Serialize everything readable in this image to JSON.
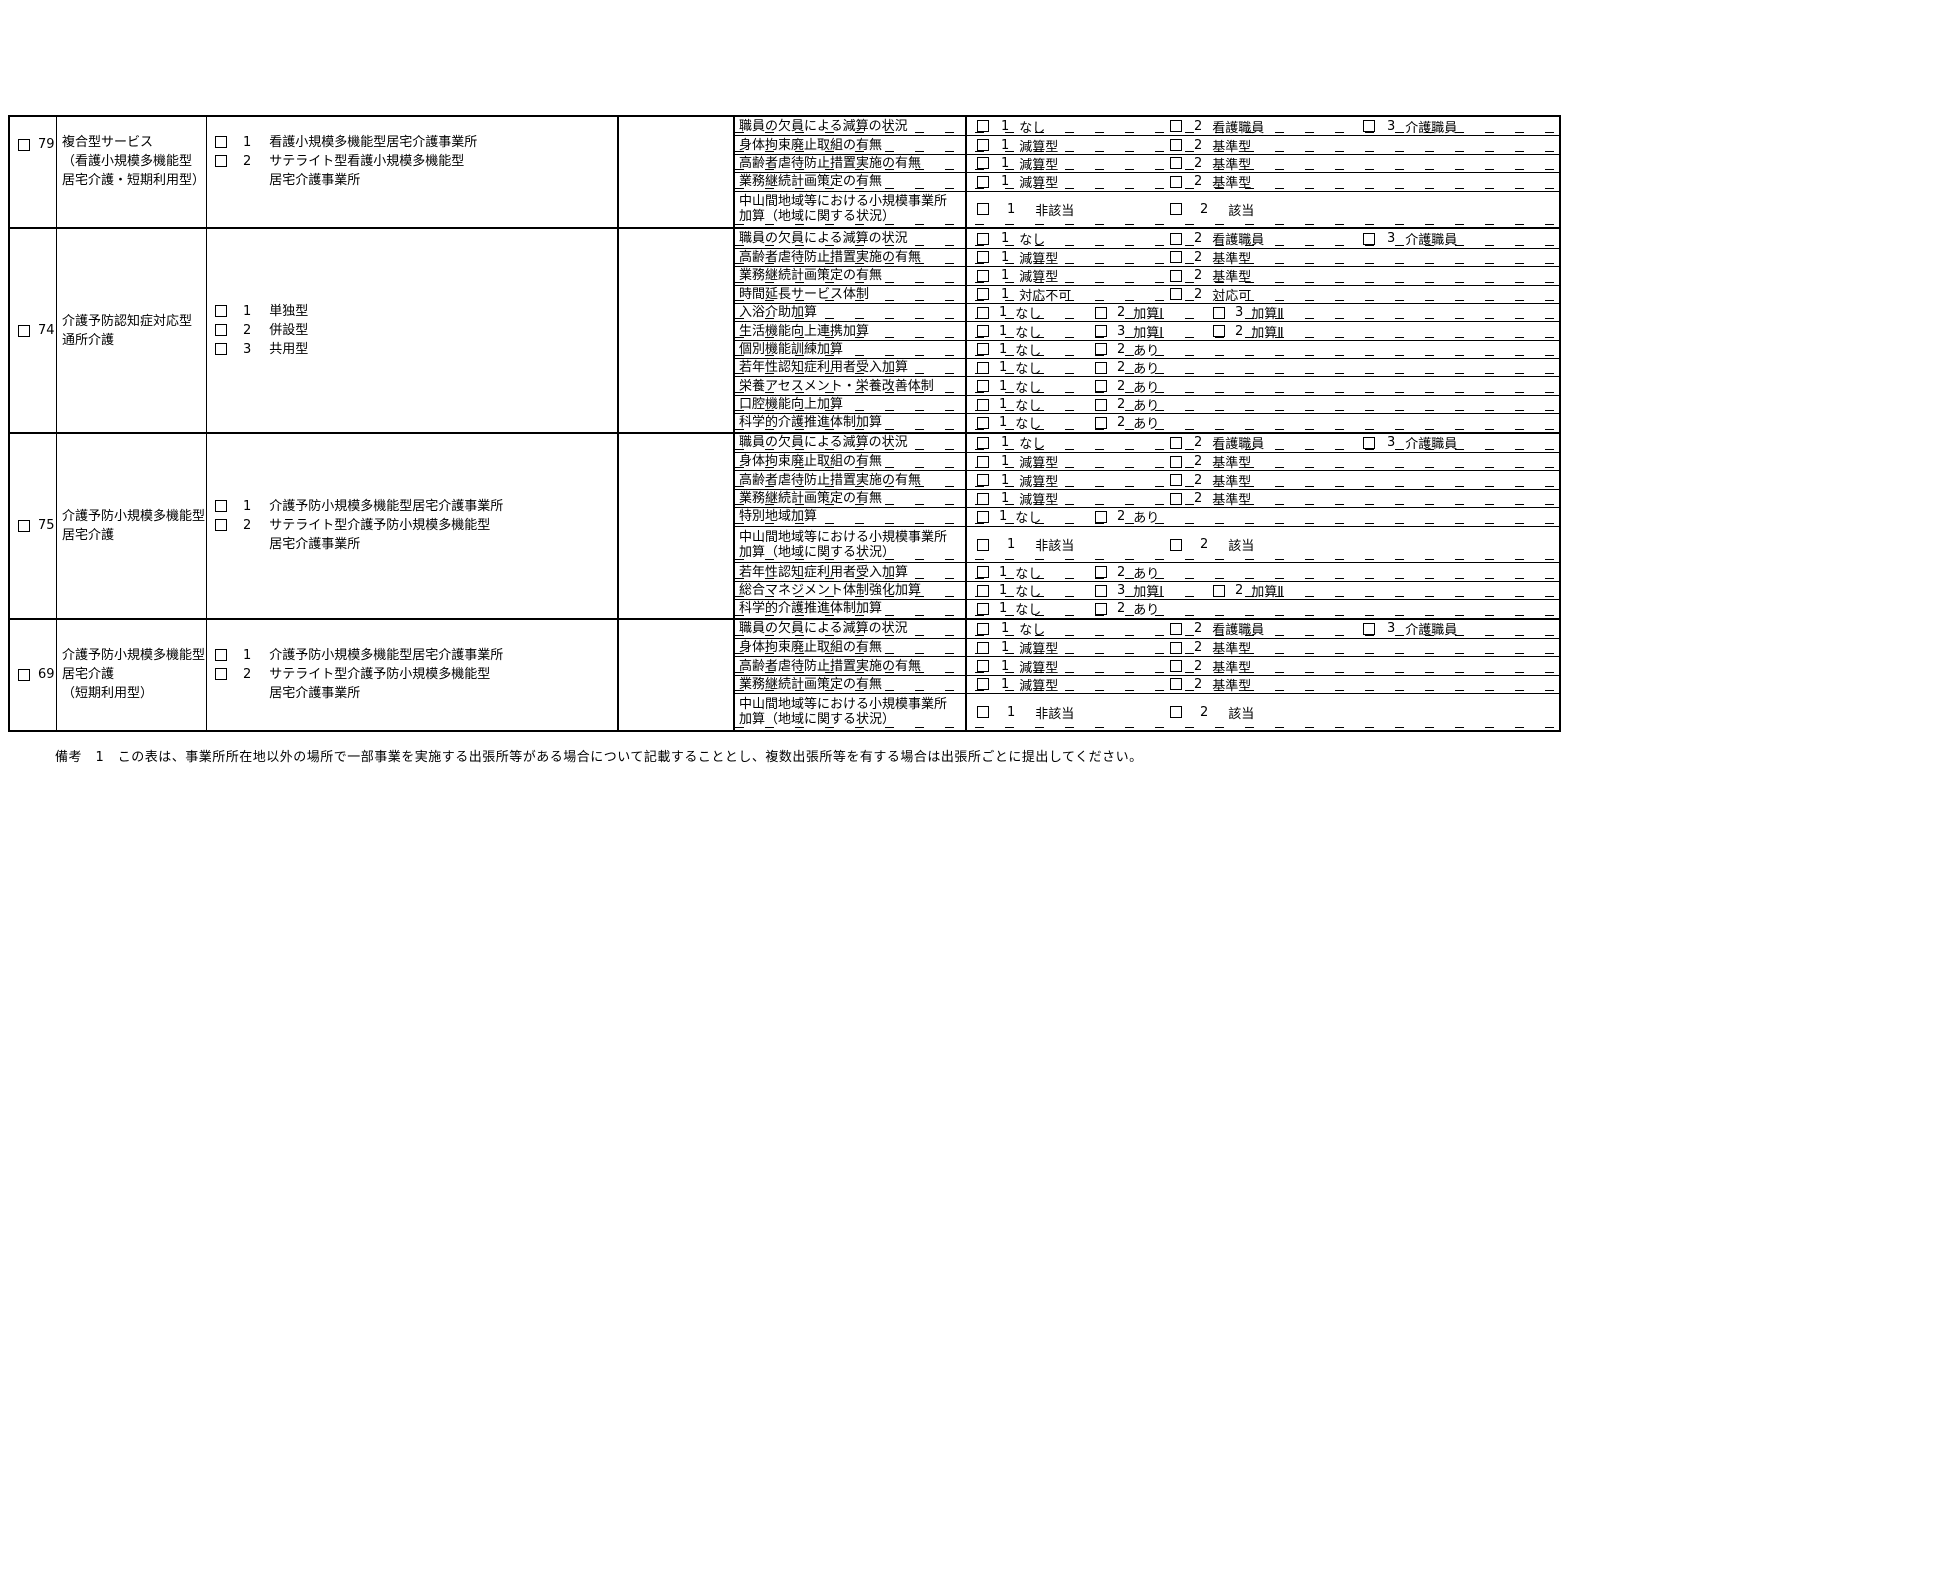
{
  "note": {
    "text": "備考　1　この表は、事業所所在地以外の場所で一部事業を実施する出張所等がある場合について記載することとし、複数出張所等を有する場合は出張所ごとに提出してください。"
  },
  "table": {
    "blocks": [
      {
        "code": "79",
        "align": "top",
        "name": "複合型サービス\n（看護小規模多機能型\n居宅介護・短期利用型）",
        "type_options": [
          {
            "num": "1",
            "text": "看護小規模多機能型居宅介護事業所"
          },
          {
            "num": "2",
            "text": "サテライト型看護小規模多機能型\n居宅介護事業所"
          }
        ],
        "rows": [
          {
            "label": "職員の欠員による減算の状況",
            "tall": false,
            "spacing": "wide",
            "options": [
              {
                "num": "1",
                "text": "なし"
              },
              {
                "num": "2",
                "text": "看護職員"
              },
              {
                "num": "3",
                "text": "介護職員"
              }
            ]
          },
          {
            "label": "身体拘束廃止取組の有無",
            "tall": false,
            "spacing": "wide",
            "options": [
              {
                "num": "1",
                "text": "減算型"
              },
              {
                "num": "2",
                "text": "基準型"
              }
            ]
          },
          {
            "label": "高齢者虐待防止措置実施の有無",
            "tall": false,
            "spacing": "wide",
            "options": [
              {
                "num": "1",
                "text": "減算型"
              },
              {
                "num": "2",
                "text": "基準型"
              }
            ]
          },
          {
            "label": "業務継続計画策定の有無",
            "tall": false,
            "spacing": "wide",
            "options": [
              {
                "num": "1",
                "text": "減算型"
              },
              {
                "num": "2",
                "text": "基準型"
              }
            ]
          },
          {
            "label": "中山間地域等における小規模事業所\n加算（地域に関する状況）",
            "tall": true,
            "spacing": "spread",
            "options": [
              {
                "num": "1",
                "text": "非該当"
              },
              {
                "num": "2",
                "text": "該当"
              }
            ]
          }
        ]
      },
      {
        "code": "74",
        "align": "center",
        "name": "介護予防認知症対応型\n通所介護",
        "type_options": [
          {
            "num": "1",
            "text": "単独型"
          },
          {
            "num": "2",
            "text": "併設型"
          },
          {
            "num": "3",
            "text": "共用型"
          }
        ],
        "rows": [
          {
            "label": "職員の欠員による減算の状況",
            "tall": false,
            "spacing": "wide",
            "options": [
              {
                "num": "1",
                "text": "なし"
              },
              {
                "num": "2",
                "text": "看護職員"
              },
              {
                "num": "3",
                "text": "介護職員"
              }
            ]
          },
          {
            "label": "高齢者虐待防止措置実施の有無",
            "tall": false,
            "spacing": "wide",
            "options": [
              {
                "num": "1",
                "text": "減算型"
              },
              {
                "num": "2",
                "text": "基準型"
              }
            ]
          },
          {
            "label": "業務継続計画策定の有無",
            "tall": false,
            "spacing": "wide",
            "options": [
              {
                "num": "1",
                "text": "減算型"
              },
              {
                "num": "2",
                "text": "基準型"
              }
            ]
          },
          {
            "label": "時間延長サービス体制",
            "tall": false,
            "spacing": "wide",
            "options": [
              {
                "num": "1",
                "text": "対応不可"
              },
              {
                "num": "2",
                "text": "対応可"
              }
            ]
          },
          {
            "label": "入浴介助加算",
            "tall": false,
            "spacing": "compact",
            "options": [
              {
                "num": "1",
                "text": "なし"
              },
              {
                "num": "2",
                "text": "加算Ⅰ"
              },
              {
                "num": "3",
                "text": "加算Ⅱ"
              }
            ]
          },
          {
            "label": "生活機能向上連携加算",
            "tall": false,
            "spacing": "compact",
            "options": [
              {
                "num": "1",
                "text": "なし"
              },
              {
                "num": "3",
                "text": "加算Ⅰ"
              },
              {
                "num": "2",
                "text": "加算Ⅱ"
              }
            ]
          },
          {
            "label": "個別機能訓練加算",
            "tall": false,
            "spacing": "compact",
            "options": [
              {
                "num": "1",
                "text": "なし"
              },
              {
                "num": "2",
                "text": "あり"
              }
            ]
          },
          {
            "label": "若年性認知症利用者受入加算",
            "tall": false,
            "spacing": "compact",
            "options": [
              {
                "num": "1",
                "text": "なし"
              },
              {
                "num": "2",
                "text": "あり"
              }
            ]
          },
          {
            "label": "栄養アセスメント・栄養改善体制",
            "tall": false,
            "spacing": "compact",
            "options": [
              {
                "num": "1",
                "text": "なし"
              },
              {
                "num": "2",
                "text": "あり"
              }
            ]
          },
          {
            "label": "口腔機能向上加算",
            "tall": false,
            "spacing": "compact",
            "options": [
              {
                "num": "1",
                "text": "なし"
              },
              {
                "num": "2",
                "text": "あり"
              }
            ]
          },
          {
            "label": "科学的介護推進体制加算",
            "tall": false,
            "spacing": "compact",
            "options": [
              {
                "num": "1",
                "text": "なし"
              },
              {
                "num": "2",
                "text": "あり"
              }
            ]
          }
        ]
      },
      {
        "code": "75",
        "align": "center",
        "name": "介護予防小規模多機能型\n居宅介護",
        "type_options": [
          {
            "num": "1",
            "text": "介護予防小規模多機能型居宅介護事業所"
          },
          {
            "num": "2",
            "text": "サテライト型介護予防小規模多機能型\n居宅介護事業所"
          }
        ],
        "rows": [
          {
            "label": "職員の欠員による減算の状況",
            "tall": false,
            "spacing": "wide",
            "options": [
              {
                "num": "1",
                "text": "なし"
              },
              {
                "num": "2",
                "text": "看護職員"
              },
              {
                "num": "3",
                "text": "介護職員"
              }
            ]
          },
          {
            "label": "身体拘束廃止取組の有無",
            "tall": false,
            "spacing": "wide",
            "options": [
              {
                "num": "1",
                "text": "減算型"
              },
              {
                "num": "2",
                "text": "基準型"
              }
            ]
          },
          {
            "label": "高齢者虐待防止措置実施の有無",
            "tall": false,
            "spacing": "wide",
            "options": [
              {
                "num": "1",
                "text": "減算型"
              },
              {
                "num": "2",
                "text": "基準型"
              }
            ]
          },
          {
            "label": "業務継続計画策定の有無",
            "tall": false,
            "spacing": "wide",
            "options": [
              {
                "num": "1",
                "text": "減算型"
              },
              {
                "num": "2",
                "text": "基準型"
              }
            ]
          },
          {
            "label": "特別地域加算",
            "tall": false,
            "spacing": "compact",
            "options": [
              {
                "num": "1",
                "text": "なし"
              },
              {
                "num": "2",
                "text": "あり"
              }
            ]
          },
          {
            "label": "中山間地域等における小規模事業所\n加算（地域に関する状況）",
            "tall": true,
            "spacing": "spread",
            "options": [
              {
                "num": "1",
                "text": "非該当"
              },
              {
                "num": "2",
                "text": "該当"
              }
            ]
          },
          {
            "label": "若年性認知症利用者受入加算",
            "tall": false,
            "spacing": "compact",
            "options": [
              {
                "num": "1",
                "text": "なし"
              },
              {
                "num": "2",
                "text": "あり"
              }
            ]
          },
          {
            "label": "総合マネジメント体制強化加算",
            "tall": false,
            "spacing": "compact",
            "options": [
              {
                "num": "1",
                "text": "なし"
              },
              {
                "num": "3",
                "text": "加算Ⅰ"
              },
              {
                "num": "2",
                "text": "加算Ⅱ"
              }
            ]
          },
          {
            "label": "科学的介護推進体制加算",
            "tall": false,
            "spacing": "compact",
            "options": [
              {
                "num": "1",
                "text": "なし"
              },
              {
                "num": "2",
                "text": "あり"
              }
            ]
          }
        ]
      },
      {
        "code": "69",
        "align": "center",
        "name": "介護予防小規模多機能型\n居宅介護\n（短期利用型）",
        "type_options": [
          {
            "num": "1",
            "text": "介護予防小規模多機能型居宅介護事業所"
          },
          {
            "num": "2",
            "text": "サテライト型介護予防小規模多機能型\n居宅介護事業所"
          }
        ],
        "rows": [
          {
            "label": "職員の欠員による減算の状況",
            "tall": false,
            "spacing": "wide",
            "options": [
              {
                "num": "1",
                "text": "なし"
              },
              {
                "num": "2",
                "text": "看護職員"
              },
              {
                "num": "3",
                "text": "介護職員"
              }
            ]
          },
          {
            "label": "身体拘束廃止取組の有無",
            "tall": false,
            "spacing": "wide",
            "options": [
              {
                "num": "1",
                "text": "減算型"
              },
              {
                "num": "2",
                "text": "基準型"
              }
            ]
          },
          {
            "label": "高齢者虐待防止措置実施の有無",
            "tall": false,
            "spacing": "wide",
            "options": [
              {
                "num": "1",
                "text": "減算型"
              },
              {
                "num": "2",
                "text": "基準型"
              }
            ]
          },
          {
            "label": "業務継続計画策定の有無",
            "tall": false,
            "spacing": "wide",
            "options": [
              {
                "num": "1",
                "text": "減算型"
              },
              {
                "num": "2",
                "text": "基準型"
              }
            ]
          },
          {
            "label": "中山間地域等における小規模事業所\n加算（地域に関する状況）",
            "tall": true,
            "spacing": "spread",
            "options": [
              {
                "num": "1",
                "text": "非該当"
              },
              {
                "num": "2",
                "text": "該当"
              }
            ]
          }
        ]
      }
    ]
  }
}
